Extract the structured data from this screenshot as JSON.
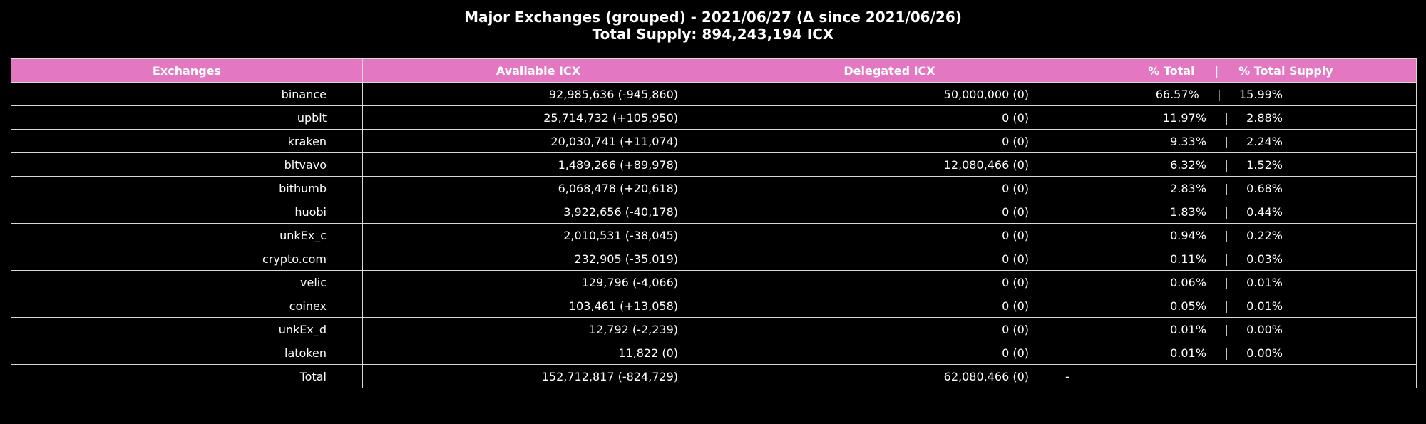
{
  "title": {
    "line1": "Major Exchanges (grouped) - 2021/06/27 (Δ since 2021/06/26)",
    "line2": "Total Supply: 894,243,194 ICX"
  },
  "colors": {
    "background": "#000000",
    "header_bg": "#e377c2",
    "text": "#ffffff",
    "border": "#d8d8d8"
  },
  "chart_data": {
    "type": "table",
    "title": "Major Exchanges (grouped) - 2021/06/27 (Δ since 2021/06/26)",
    "subtitle": "Total Supply: 894,243,194 ICX",
    "columns": [
      "Exchanges",
      "Available ICX",
      "Delegated ICX",
      "% Total     |     % Total Supply"
    ],
    "rows": [
      [
        "binance",
        "92,985,636 (-945,860)",
        "50,000,000 (0)",
        "66.57%     |     15.99%"
      ],
      [
        "upbit",
        "25,714,732 (+105,950)",
        "0 (0)",
        "11.97%     |     2.88%"
      ],
      [
        "kraken",
        "20,030,741 (+11,074)",
        "0 (0)",
        "9.33%     |     2.24%"
      ],
      [
        "bitvavo",
        "1,489,266 (+89,978)",
        "12,080,466 (0)",
        "6.32%     |     1.52%"
      ],
      [
        "bithumb",
        "6,068,478 (+20,618)",
        "0 (0)",
        "2.83%     |     0.68%"
      ],
      [
        "huobi",
        "3,922,656 (-40,178)",
        "0 (0)",
        "1.83%     |     0.44%"
      ],
      [
        "unkEx_c",
        "2,010,531 (-38,045)",
        "0 (0)",
        "0.94%     |     0.22%"
      ],
      [
        "crypto.com",
        "232,905 (-35,019)",
        "0 (0)",
        "0.11%     |     0.03%"
      ],
      [
        "velic",
        "129,796 (-4,066)",
        "0 (0)",
        "0.06%     |     0.01%"
      ],
      [
        "coinex",
        "103,461 (+13,058)",
        "0 (0)",
        "0.05%     |     0.01%"
      ],
      [
        "unkEx_d",
        "12,792 (-2,239)",
        "0 (0)",
        "0.01%     |     0.00%"
      ],
      [
        "latoken",
        "11,822 (0)",
        "0 (0)",
        "0.01%     |     0.00%"
      ],
      [
        "Total",
        "152,712,817 (-824,729)",
        "62,080,466 (0)",
        "-"
      ]
    ]
  }
}
